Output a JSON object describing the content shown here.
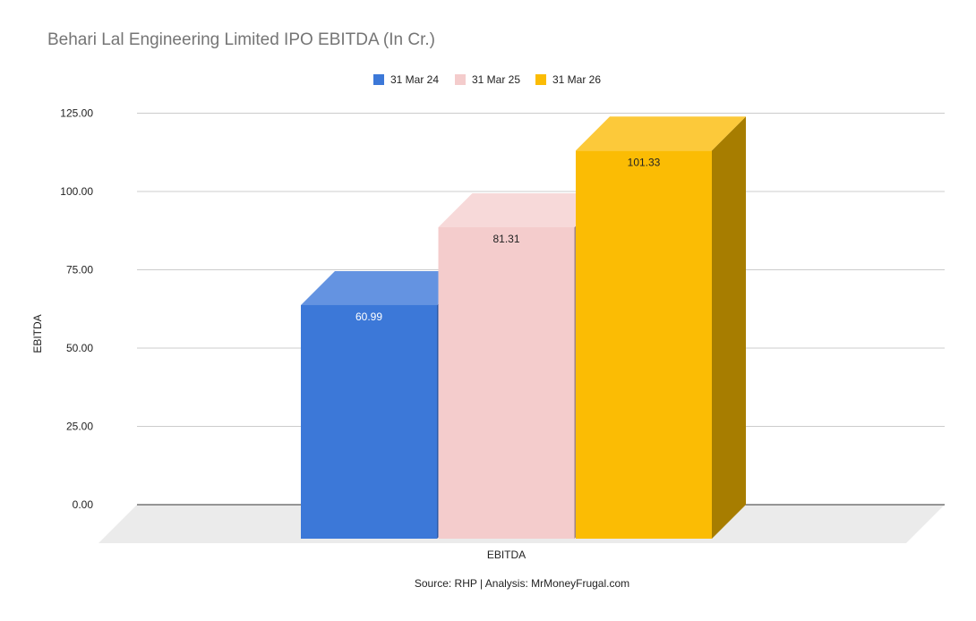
{
  "chart_data": {
    "type": "bar",
    "title": "Behari Lal Engineering Limited IPO EBITDA (In Cr.)",
    "xlabel": "",
    "ylabel": "EBITDA",
    "categories": [
      "EBITDA"
    ],
    "series": [
      {
        "name": "31 Mar 24",
        "values": [
          60.99
        ],
        "label": "60.99",
        "label_color": "#ffffff"
      },
      {
        "name": "31 Mar 25",
        "values": [
          81.31
        ],
        "label": "81.31",
        "label_color": "#222222"
      },
      {
        "name": "31 Mar 26",
        "values": [
          101.33
        ],
        "label": "101.33",
        "label_color": "#222222"
      }
    ],
    "ylim": [
      0,
      125
    ],
    "yticks": [
      "0.00",
      "25.00",
      "50.00",
      "75.00",
      "100.00",
      "125.00"
    ],
    "grid": true,
    "legend_position": "top-center",
    "style": "3d"
  },
  "colors": {
    "31 Mar 24": {
      "front": "#3c78d8",
      "top": "#6493e1",
      "side": "#2a5aa8"
    },
    "31 Mar 25": {
      "front": "#f4cccc",
      "top": "#f7d9d9",
      "side": "#9e8484"
    },
    "31 Mar 26": {
      "front": "#fbbc04",
      "top": "#fcc93a",
      "side": "#a77d00"
    },
    "grid": "#cccccc",
    "floor": "#ebebeb"
  },
  "source": "Source: RHP | Analysis: MrMoneyFrugal.com"
}
